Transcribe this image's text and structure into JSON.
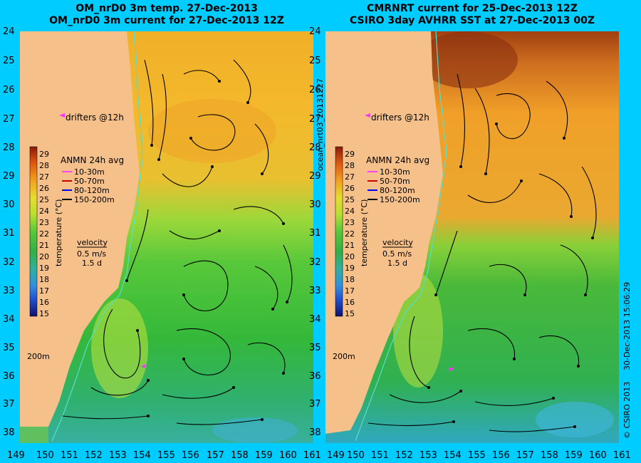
{
  "titles": {
    "left_line1": "OM_nrD0 3m temp. 27-Dec-2013",
    "left_line2": "OM_nrD0 3m current for 27-Dec-2013 12Z",
    "right_line1": "CMRNRT current for 25-Dec-2013 12Z",
    "right_line2": "CSIRO 3day AVHRR SST at 27-Dec-2013 00Z"
  },
  "axes": {
    "lat_labels": [
      "24",
      "25",
      "26",
      "27",
      "28",
      "29",
      "30",
      "31",
      "32",
      "33",
      "34",
      "35",
      "36",
      "37",
      "38"
    ],
    "lon_labels": [
      "149",
      "150",
      "151",
      "152",
      "153",
      "154",
      "155",
      "156",
      "157",
      "158",
      "159",
      "160",
      "161"
    ],
    "lat_range": [
      24,
      38.3
    ],
    "lon_range": [
      149,
      161
    ]
  },
  "legend": {
    "drifters_label": "drifters @12h",
    "anmn_title": "ANMN 24h avg",
    "anmn_items": [
      {
        "label": "10-30m",
        "color": "#ff44ff"
      },
      {
        "label": "50-70m",
        "color": "#cc0000"
      },
      {
        "label": "80-120m",
        "color": "#0000ff"
      },
      {
        "label": "150-200m",
        "color": "#000000"
      }
    ],
    "colorbar_ticks": [
      "29",
      "28",
      "27",
      "26",
      "25",
      "24",
      "23",
      "22",
      "21",
      "20",
      "19",
      "18",
      "17",
      "16",
      "15"
    ],
    "colorbar_label": "temperature (°C)",
    "velocity_label": "velocity",
    "velocity_scale": "0.5 m/s",
    "velocity_time": "1.5 d",
    "isobath_label": "200m"
  },
  "side_labels": {
    "middle": "ocean_nrt03_20131227",
    "right_date": "30-Dec-2013 15:06:29",
    "right_credit": "© CSIRO 2013"
  },
  "colors": {
    "background": "#00ccff",
    "land": "#f5c08a",
    "isobath": "#55ddcc",
    "drifter": "#ff33ff"
  }
}
